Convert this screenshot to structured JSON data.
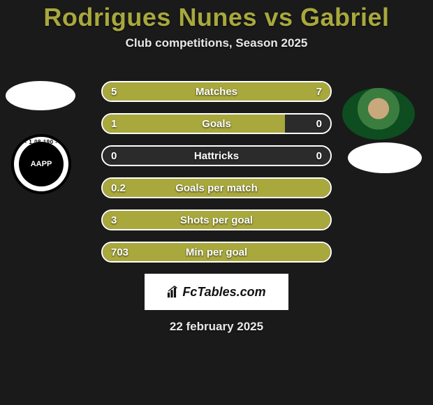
{
  "title": "Rodrigues Nunes vs Gabriel",
  "subtitle": "Club competitions, Season 2025",
  "date": "22 february 2025",
  "brand": "FcTables.com",
  "colors": {
    "olive": "#a8a83d",
    "bg": "#1a1a1a",
    "text": "#ffffff"
  },
  "player_left": {
    "name": "Rodrigues Nunes",
    "badge_text": "AAPP",
    "badge_arc": "- 1.08.190 -"
  },
  "player_right": {
    "name": "Gabriel"
  },
  "stats": [
    {
      "label": "Matches",
      "left_value": "5",
      "right_value": "7",
      "left_pct": 41.7,
      "right_pct": 58.3,
      "full": true
    },
    {
      "label": "Goals",
      "left_value": "1",
      "right_value": "0",
      "left_pct": 80,
      "right_pct": 0,
      "full": false
    },
    {
      "label": "Hattricks",
      "left_value": "0",
      "right_value": "0",
      "left_pct": 0,
      "right_pct": 0,
      "full": false
    },
    {
      "label": "Goals per match",
      "left_value": "0.2",
      "right_value": "",
      "left_pct": 100,
      "right_pct": 0,
      "full": true
    },
    {
      "label": "Shots per goal",
      "left_value": "3",
      "right_value": "",
      "left_pct": 100,
      "right_pct": 0,
      "full": true
    },
    {
      "label": "Min per goal",
      "left_value": "703",
      "right_value": "",
      "left_pct": 100,
      "right_pct": 0,
      "full": true
    }
  ]
}
